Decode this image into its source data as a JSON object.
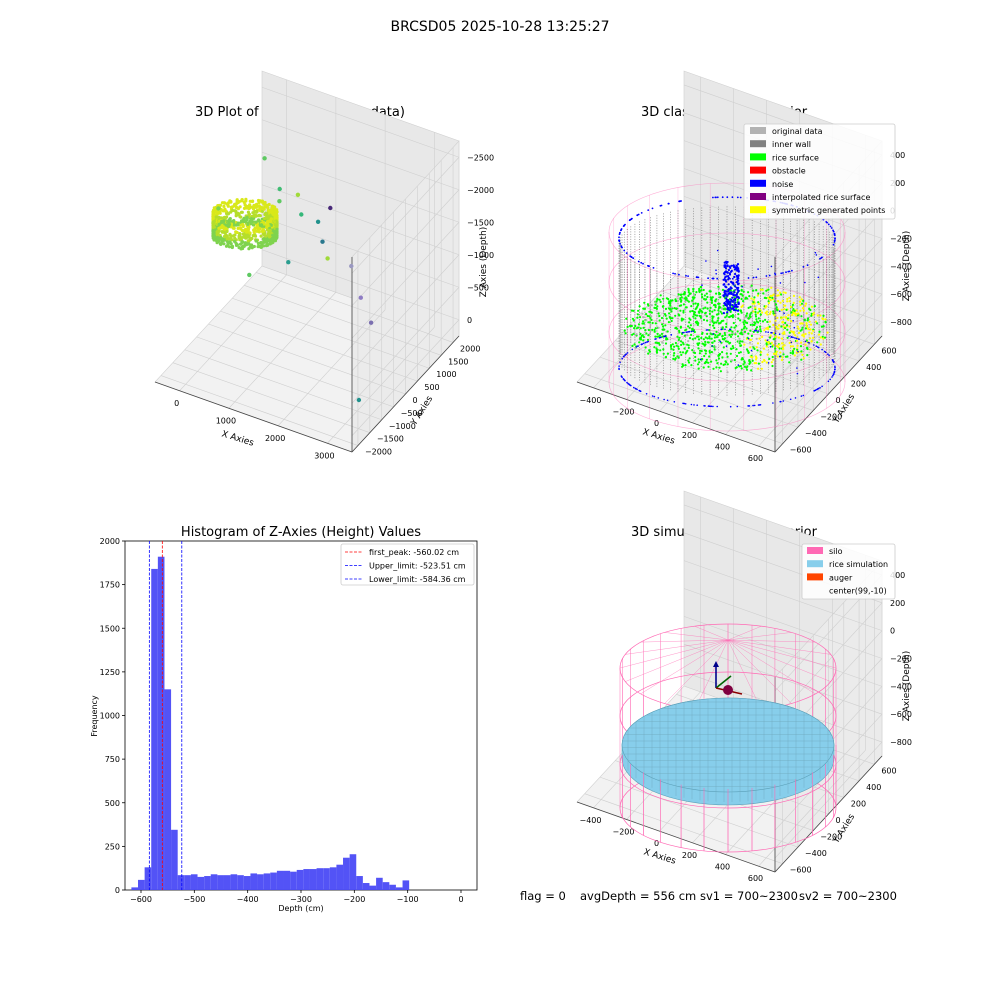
{
  "figure_title": "BRCSD05 2025-10-28 13:25:27",
  "footer": {
    "flag": "flag = 0",
    "avg_depth": "avgDepth = 556 cm",
    "sv1": "sv1 = 700~2300",
    "sv2": "sv2 = 700~2300"
  },
  "colors": {
    "original_data": "#b3b3b3",
    "inner_wall": "#808080",
    "rice_surface": "#00ff00",
    "obstacle": "#ff0000",
    "noise": "#0000ff",
    "interpolated_rice_surface": "#800080",
    "symmetric_generated_points": "#ffff00",
    "silo": "#ff69b4",
    "rice_simulation": "#87ceeb",
    "auger": "#ff4500",
    "histogram_bar": "#4a4af5",
    "first_peak_line": "#ff0000",
    "limit_line": "#0000ff"
  },
  "chart_data": [
    {
      "type": "scatter",
      "title": "3D Plot of Silo Interior(row data)",
      "xlabel": "X Axies",
      "ylabel": "Y Axies",
      "zlabel": "Z Axies (Depth)",
      "x_ticks": [
        "0",
        "1000",
        "2000",
        "3000"
      ],
      "y_ticks": [
        "−2000",
        "−1500",
        "−1000",
        "−500",
        "0",
        "500",
        "1000",
        "1500",
        "2000"
      ],
      "z_ticks": [
        "0",
        "−500",
        "−1000",
        "−1500",
        "−2000",
        "−2500"
      ],
      "xlim": [
        -600,
        3700
      ],
      "ylim": [
        -2000,
        2000
      ],
      "zlim": [
        -2800,
        0
      ],
      "outliers": [
        {
          "x": 450,
          "y": 300,
          "z": -300
        },
        {
          "x": 720,
          "y": 400,
          "z": -720
        },
        {
          "x": 900,
          "y": 80,
          "z": -720
        },
        {
          "x": 1000,
          "y": 600,
          "z": -820
        },
        {
          "x": 1250,
          "y": 300,
          "z": -920
        },
        {
          "x": 1500,
          "y": 500,
          "z": -1050
        },
        {
          "x": 1800,
          "y": 150,
          "z": -1120
        },
        {
          "x": 2000,
          "y": 0,
          "z": -1250
        },
        {
          "x": 2400,
          "y": 200,
          "z": -1350
        },
        {
          "x": 2900,
          "y": -300,
          "z": -1480
        },
        {
          "x": 3300,
          "y": -600,
          "z": -1620
        },
        {
          "x": 700,
          "y": -700,
          "z": -1500
        },
        {
          "x": -500,
          "y": 200,
          "z": -1200
        },
        {
          "x": 3500,
          "y": -1400,
          "z": -2350
        },
        {
          "x": 1650,
          "y": 700,
          "z": -900
        },
        {
          "x": 1200,
          "y": -100,
          "z": -1450
        }
      ]
    },
    {
      "type": "scatter",
      "title": "3D classify of Silo Interior",
      "xlabel": "X Axies",
      "ylabel": "Y Axies",
      "zlabel": "Z Axies (Depth)",
      "x_ticks": [
        "−400",
        "−200",
        "0",
        "200",
        "400",
        "600"
      ],
      "y_ticks": [
        "−600",
        "−400",
        "−200",
        "0",
        "200",
        "400",
        "600"
      ],
      "z_ticks": [
        "−800",
        "−600",
        "−400",
        "−200",
        "0",
        "200",
        "400"
      ],
      "xlim": [
        -550,
        700
      ],
      "ylim": [
        -700,
        700
      ],
      "zlim": [
        -900,
        450
      ],
      "legend": {
        "position": "top-right",
        "entries": [
          "original data",
          "inner wall",
          "rice surface",
          "obstacle",
          "noise",
          "interpolated rice surface",
          "symmetric generated points"
        ]
      }
    },
    {
      "type": "bar",
      "title": "Histogram of Z-Axies (Height) Values",
      "xlabel": "Depth (cm)",
      "ylabel": "Frequency",
      "xlim": [
        -630,
        30
      ],
      "ylim": [
        0,
        2000
      ],
      "x_ticks": [
        "−600",
        "−500",
        "−400",
        "−300",
        "−200",
        "−100",
        "0"
      ],
      "y_ticks": [
        "0",
        "250",
        "500",
        "750",
        "1000",
        "1250",
        "1500",
        "1750",
        "2000"
      ],
      "bin_start": -618,
      "bin_width": 12.4,
      "values": [
        15,
        58,
        130,
        1840,
        1910,
        1150,
        345,
        85,
        85,
        90,
        75,
        80,
        90,
        85,
        85,
        90,
        85,
        80,
        95,
        90,
        95,
        100,
        110,
        110,
        105,
        115,
        120,
        120,
        125,
        125,
        130,
        145,
        185,
        205,
        80,
        40,
        25,
        70,
        45,
        30,
        15,
        55
      ],
      "vlines": [
        {
          "label": "first_peak: -560.02 cm",
          "x": -560.02,
          "color": "#ff0000"
        },
        {
          "label": "Upper_limit: -523.51 cm",
          "x": -523.51,
          "color": "#0000ff"
        },
        {
          "label": "Lower_limit: -584.36 cm",
          "x": -584.36,
          "color": "#0000ff"
        }
      ],
      "legend": {
        "position": "top-right"
      }
    },
    {
      "type": "scatter",
      "title": "3D simulation of Silo Interior",
      "xlabel": "X Axies",
      "ylabel": "Y Axies",
      "zlabel": "Z Axies (Depth)",
      "x_ticks": [
        "−400",
        "−200",
        "0",
        "200",
        "400",
        "600"
      ],
      "y_ticks": [
        "−600",
        "−400",
        "−200",
        "0",
        "200",
        "400",
        "600"
      ],
      "z_ticks": [
        "−800",
        "−600",
        "−400",
        "−200",
        "0",
        "200",
        "400"
      ],
      "xlim": [
        -550,
        700
      ],
      "ylim": [
        -700,
        700
      ],
      "zlim": [
        -900,
        450
      ],
      "legend": {
        "position": "top-right",
        "entries": [
          "silo",
          "rice simulation",
          "auger",
          "center(99,-10)"
        ]
      }
    }
  ]
}
